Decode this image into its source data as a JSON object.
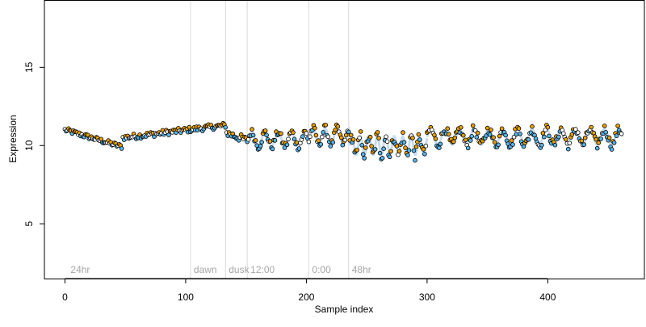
{
  "chart_data": {
    "type": "scatter",
    "title": "",
    "xlabel": "Sample index",
    "ylabel": "Expression",
    "xlim": [
      -17,
      480
    ],
    "ylim": [
      1.5,
      19.3
    ],
    "xticks": [
      0,
      100,
      200,
      300,
      400
    ],
    "yticks": [
      5,
      10,
      15
    ],
    "grid": false,
    "legend": "none",
    "colors": {
      "orange": "#E69F00",
      "blue": "#56B4E9",
      "light_blue": "#C7DCEF",
      "point_edge": "#000000",
      "vline": "#D9D9D9",
      "annotation": "#A6A6A6"
    },
    "vlines": [
      {
        "x": 104,
        "label": "dawn"
      },
      {
        "x": 133,
        "label": "dusk"
      },
      {
        "x": 151,
        "label": "12:00"
      },
      {
        "x": 202,
        "label": "0:00"
      },
      {
        "x": 235,
        "label": "48hr"
      }
    ],
    "annotations": [
      {
        "x": 2,
        "label": "24hr"
      }
    ],
    "series": [
      {
        "segments": [
          {
            "type": "linear",
            "x0": 0,
            "x1": 48,
            "y0": 11.0,
            "y1": 9.9,
            "noise": 0.15
          },
          {
            "type": "linear",
            "x0": 48,
            "x1": 134,
            "y0": 10.5,
            "y1": 11.3,
            "noise": 0.18
          },
          {
            "type": "linear",
            "x0": 134,
            "x1": 152,
            "y0": 10.8,
            "y1": 10.3,
            "noise": 0.25
          },
          {
            "type": "sine",
            "x0": 152,
            "x1": 203,
            "base": 10.4,
            "amp": 0.45,
            "period": 11,
            "noise": 0.25
          },
          {
            "type": "sine",
            "x0": 203,
            "x1": 236,
            "base": 10.6,
            "amp": 0.5,
            "period": 10,
            "noise": 0.25
          },
          {
            "type": "sine",
            "x0": 236,
            "x1": 300,
            "base": 10.0,
            "amp": 0.6,
            "period": 7,
            "noise": 0.4
          },
          {
            "type": "sine",
            "x0": 300,
            "x1": 462,
            "base": 10.55,
            "amp": 0.5,
            "period": 12,
            "noise": 0.3
          }
        ]
      }
    ]
  }
}
